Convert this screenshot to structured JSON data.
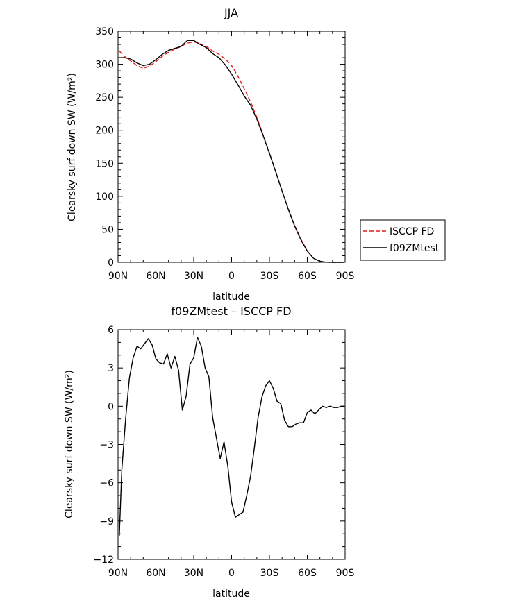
{
  "chart_data": [
    {
      "type": "line",
      "title": "JJA",
      "xlabel": "latitude",
      "ylabel": "Clearsky surf down SW (W/m²)",
      "xlim": [
        90,
        -90
      ],
      "ylim": [
        0,
        350
      ],
      "x_ticks": [
        90,
        60,
        30,
        0,
        -30,
        -60,
        -90
      ],
      "x_tick_labels": [
        "90N",
        "60N",
        "30N",
        "0",
        "30S",
        "60S",
        "90S"
      ],
      "y_ticks": [
        0,
        50,
        100,
        150,
        200,
        250,
        300,
        350
      ],
      "y_tick_labels": [
        "0",
        "50",
        "100",
        "150",
        "200",
        "250",
        "300",
        "350"
      ],
      "grid": false,
      "legend_position": "outside-right",
      "series": [
        {
          "name": "ISCCP FD",
          "color": "#e41a1c",
          "dash": "dashed",
          "x": [
            89,
            85,
            80,
            75,
            70,
            65,
            60,
            55,
            50,
            45,
            40,
            35,
            30,
            25,
            20,
            15,
            10,
            5,
            0,
            -5,
            -10,
            -15,
            -20,
            -25,
            -30,
            -35,
            -40,
            -45,
            -50,
            -55,
            -60,
            -65,
            -70,
            -75,
            -80,
            -85,
            -89
          ],
          "y": [
            320,
            312,
            305,
            298,
            294,
            297,
            304,
            312,
            318,
            323,
            327,
            332,
            334,
            331,
            327,
            320,
            315,
            308,
            298,
            282,
            263,
            243,
            220,
            193,
            166,
            137,
            108,
            81,
            56,
            35,
            17,
            6,
            1.5,
            0.2,
            0,
            0,
            0
          ]
        },
        {
          "name": "f09ZMtest",
          "color": "#000000",
          "dash": "solid",
          "x": [
            89,
            85,
            80,
            75,
            70,
            65,
            60,
            55,
            50,
            45,
            40,
            35,
            30,
            25,
            20,
            15,
            10,
            5,
            0,
            -5,
            -10,
            -15,
            -20,
            -25,
            -30,
            -35,
            -40,
            -45,
            -50,
            -55,
            -60,
            -65,
            -70,
            -75,
            -80,
            -85,
            -89
          ],
          "y": [
            310,
            310,
            308,
            302,
            298,
            300,
            307,
            315,
            321,
            324,
            327,
            336,
            336,
            330,
            325,
            316,
            310,
            299,
            285,
            269,
            252,
            238,
            217,
            192,
            165,
            137,
            108,
            80,
            55,
            34,
            17,
            6,
            1.5,
            0.2,
            0,
            0,
            0
          ]
        }
      ]
    },
    {
      "type": "line",
      "title": "f09ZMtest – ISCCP FD",
      "xlabel": "latitude",
      "ylabel": "Clearsky surf down SW (W/m²)",
      "xlim": [
        90,
        -90
      ],
      "ylim": [
        -12,
        6
      ],
      "x_ticks": [
        90,
        60,
        30,
        0,
        -30,
        -60,
        -90
      ],
      "x_tick_labels": [
        "90N",
        "60N",
        "30N",
        "0",
        "30S",
        "60S",
        "90S"
      ],
      "y_ticks": [
        -12,
        -9,
        -6,
        -3,
        0,
        3,
        6
      ],
      "y_tick_labels": [
        "−12",
        "−9",
        "−6",
        "−3",
        "0",
        "3",
        "6"
      ],
      "grid": false,
      "series": [
        {
          "color": "#000000",
          "dash": "solid",
          "x": [
            89,
            87,
            84,
            81,
            78,
            75,
            72,
            69,
            66,
            63,
            60,
            57,
            54,
            51,
            48,
            45,
            42,
            39,
            36,
            33,
            30,
            27,
            24,
            21,
            18,
            15,
            12,
            9,
            6,
            3,
            0,
            -3,
            -6,
            -9,
            -12,
            -15,
            -18,
            -21,
            -24,
            -27,
            -30,
            -33,
            -36,
            -39,
            -42,
            -45,
            -48,
            -51,
            -54,
            -57,
            -60,
            -63,
            -66,
            -69,
            -72,
            -75,
            -78,
            -81,
            -84,
            -87,
            -89
          ],
          "y": [
            -10.2,
            -5,
            -1,
            2.2,
            3.8,
            4.7,
            4.5,
            4.9,
            5.3,
            4.8,
            3.7,
            3.4,
            3.3,
            4.1,
            3.0,
            3.9,
            2.8,
            -0.3,
            0.8,
            3.3,
            3.8,
            5.4,
            4.7,
            3.0,
            2.3,
            -0.9,
            -2.5,
            -4.1,
            -2.8,
            -4.7,
            -7.5,
            -8.7,
            -8.5,
            -8.3,
            -7.0,
            -5.5,
            -3.3,
            -0.9,
            0.7,
            1.6,
            2.0,
            1.4,
            0.4,
            0.2,
            -1.1,
            -1.6,
            -1.6,
            -1.4,
            -1.3,
            -1.3,
            -0.5,
            -0.3,
            -0.6,
            -0.3,
            0.0,
            -0.1,
            0.0,
            -0.1,
            -0.1,
            0.0,
            0.0
          ]
        }
      ]
    }
  ]
}
